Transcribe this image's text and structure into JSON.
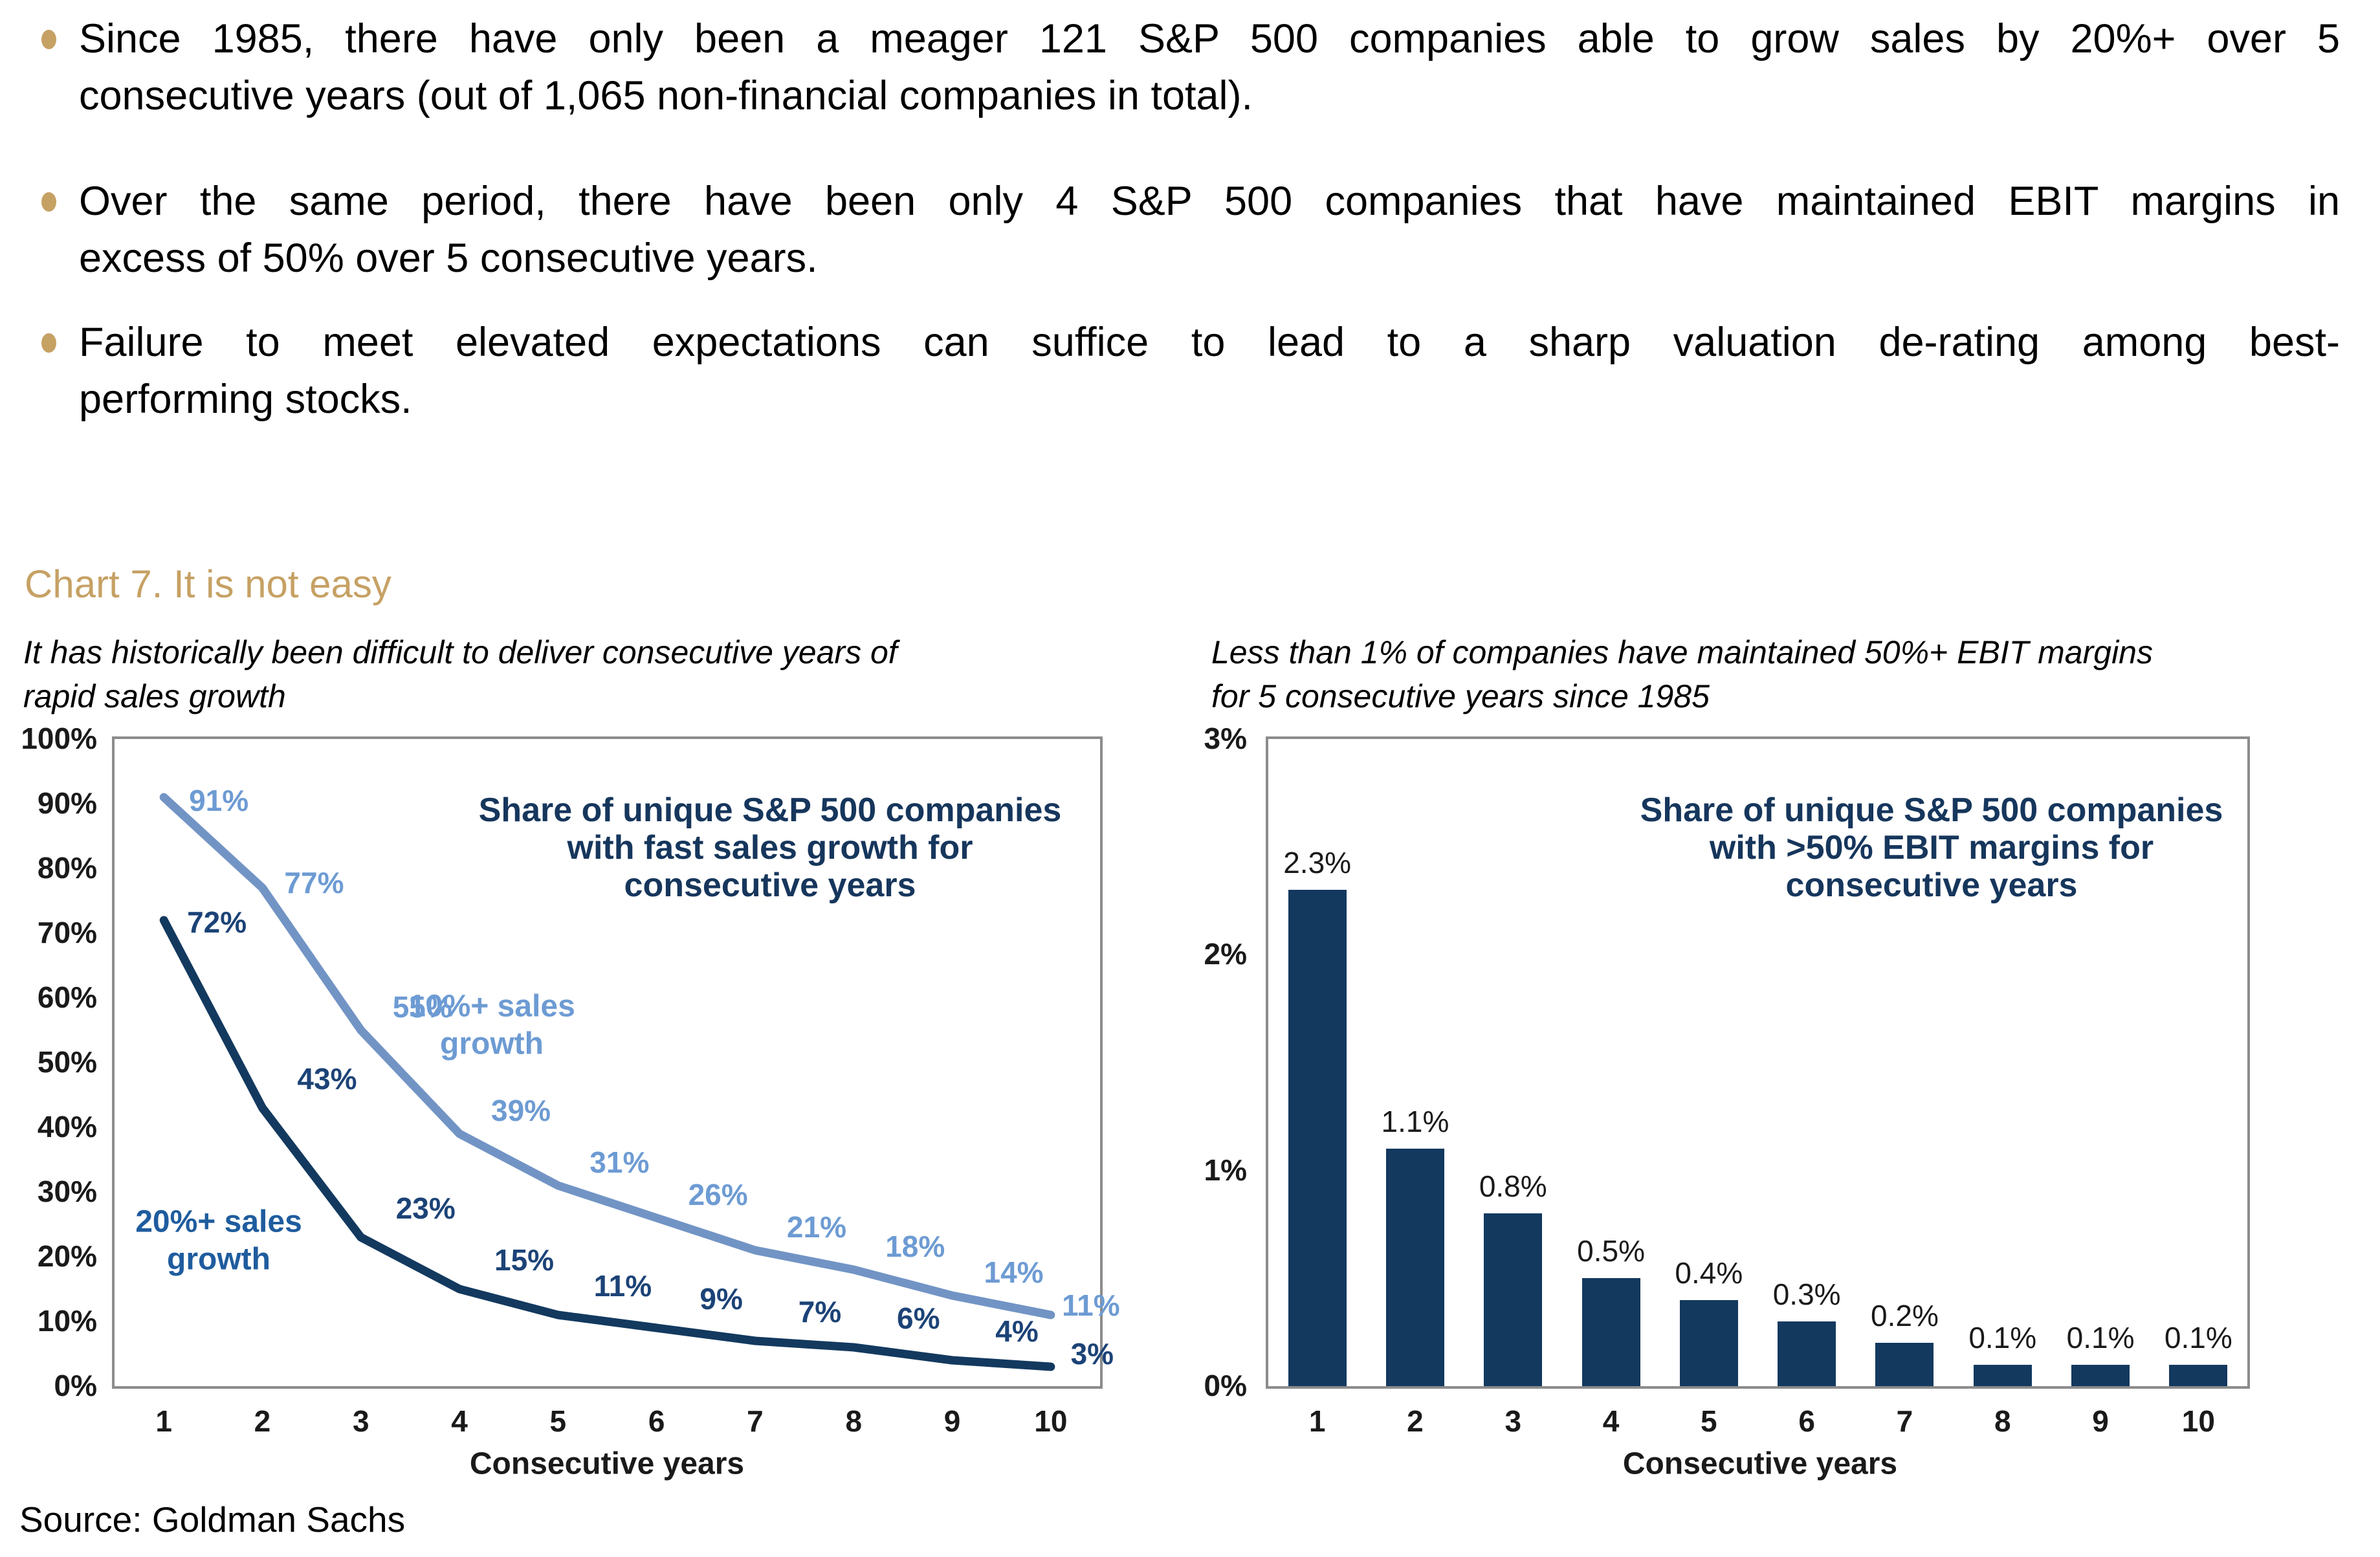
{
  "page": {
    "source_note": "Source: Goldman Sachs"
  },
  "section": {
    "heading": "Chart 7. It is not easy"
  },
  "bullets": [
    {
      "lines": [
        "Since 1985, there have only been a meager 121 S&P 500 companies able to grow sales by 20%+ over 5",
        "consecutive years (out of 1,065 non-financial companies in total)."
      ]
    },
    {
      "lines": [
        "Over the same period, there have been only 4 S&P 500 companies that have maintained EBIT margins in",
        "excess of 50% over 5 consecutive years."
      ]
    },
    {
      "lines": [
        "Failure to meet elevated expectations can suffice to lead to a sharp valuation de-rating among best-",
        "performing stocks."
      ]
    }
  ],
  "colors": {
    "accent_tan": "#C6A164",
    "body_text": "#000000",
    "chart_title": "#16365C",
    "tick_text": "#1a1a1a",
    "light_blue": "#7294C5",
    "light_blue_label": "#6D9BD3",
    "dark_navy": "#13395F",
    "dark_navy_label": "#1C4377",
    "medium_blue_label": "#1F5C9E",
    "frame_gray": "#8C8C8C"
  },
  "chart_data": [
    {
      "type": "line",
      "title": "Share of unique S&P 500 companies with fast sales growth for consecutive years",
      "title_lines": [
        "Share of unique S&P 500 companies",
        "with fast sales growth for",
        "consecutive years"
      ],
      "subtitle_lines": [
        "It has historically been difficult to deliver consecutive years of",
        "rapid sales growth"
      ],
      "xlabel": "Consecutive years",
      "x": [
        1,
        2,
        3,
        4,
        5,
        6,
        7,
        8,
        9,
        10
      ],
      "ylim": [
        0,
        100
      ],
      "yticks": [
        "100%",
        "90%",
        "80%",
        "70%",
        "60%",
        "50%",
        "40%",
        "30%",
        "20%",
        "10%",
        "0%"
      ],
      "grid": false,
      "legend_position": "inline annotations",
      "series": [
        {
          "name": "10%+ sales growth",
          "name_lines": [
            "10%+ sales",
            "growth"
          ],
          "values": [
            91,
            77,
            55,
            39,
            31,
            26,
            21,
            18,
            14,
            11
          ],
          "labels": [
            "91%",
            "77%",
            "55%",
            "39%",
            "31%",
            "26%",
            "21%",
            "18%",
            "14%",
            "11%"
          ],
          "color_key": "light_blue",
          "label_color_key": "light_blue_label",
          "annotation_color_key": "light_blue_label"
        },
        {
          "name": "20%+ sales growth",
          "name_lines": [
            "20%+ sales",
            "growth"
          ],
          "values": [
            72,
            43,
            23,
            15,
            11,
            9,
            7,
            6,
            4,
            3
          ],
          "labels": [
            "72%",
            "43%",
            "23%",
            "15%",
            "11%",
            "9%",
            "7%",
            "6%",
            "4%",
            "3%"
          ],
          "color_key": "dark_navy",
          "label_color_key": "dark_navy_label",
          "annotation_color_key": "medium_blue_label"
        }
      ]
    },
    {
      "type": "bar",
      "title": "Share of unique S&P 500 companies with >50% EBIT margins for consecutive years",
      "title_lines": [
        "Share of unique S&P 500 companies",
        "with >50% EBIT margins for",
        "consecutive years"
      ],
      "subtitle_lines": [
        "Less than 1% of companies have maintained 50%+ EBIT margins",
        "for 5 consecutive years since 1985"
      ],
      "xlabel": "Consecutive years",
      "categories": [
        1,
        2,
        3,
        4,
        5,
        6,
        7,
        8,
        9,
        10
      ],
      "values": [
        2.3,
        1.1,
        0.8,
        0.5,
        0.4,
        0.3,
        0.2,
        0.1,
        0.1,
        0.1
      ],
      "labels": [
        "2.3%",
        "1.1%",
        "0.8%",
        "0.5%",
        "0.4%",
        "0.3%",
        "0.2%",
        "0.1%",
        "0.1%",
        "0.1%"
      ],
      "ylim": [
        0,
        3
      ],
      "yticks": [
        "3%",
        "2%",
        "1%",
        "0%"
      ],
      "grid": false,
      "bar_color_key": "dark_navy"
    }
  ]
}
